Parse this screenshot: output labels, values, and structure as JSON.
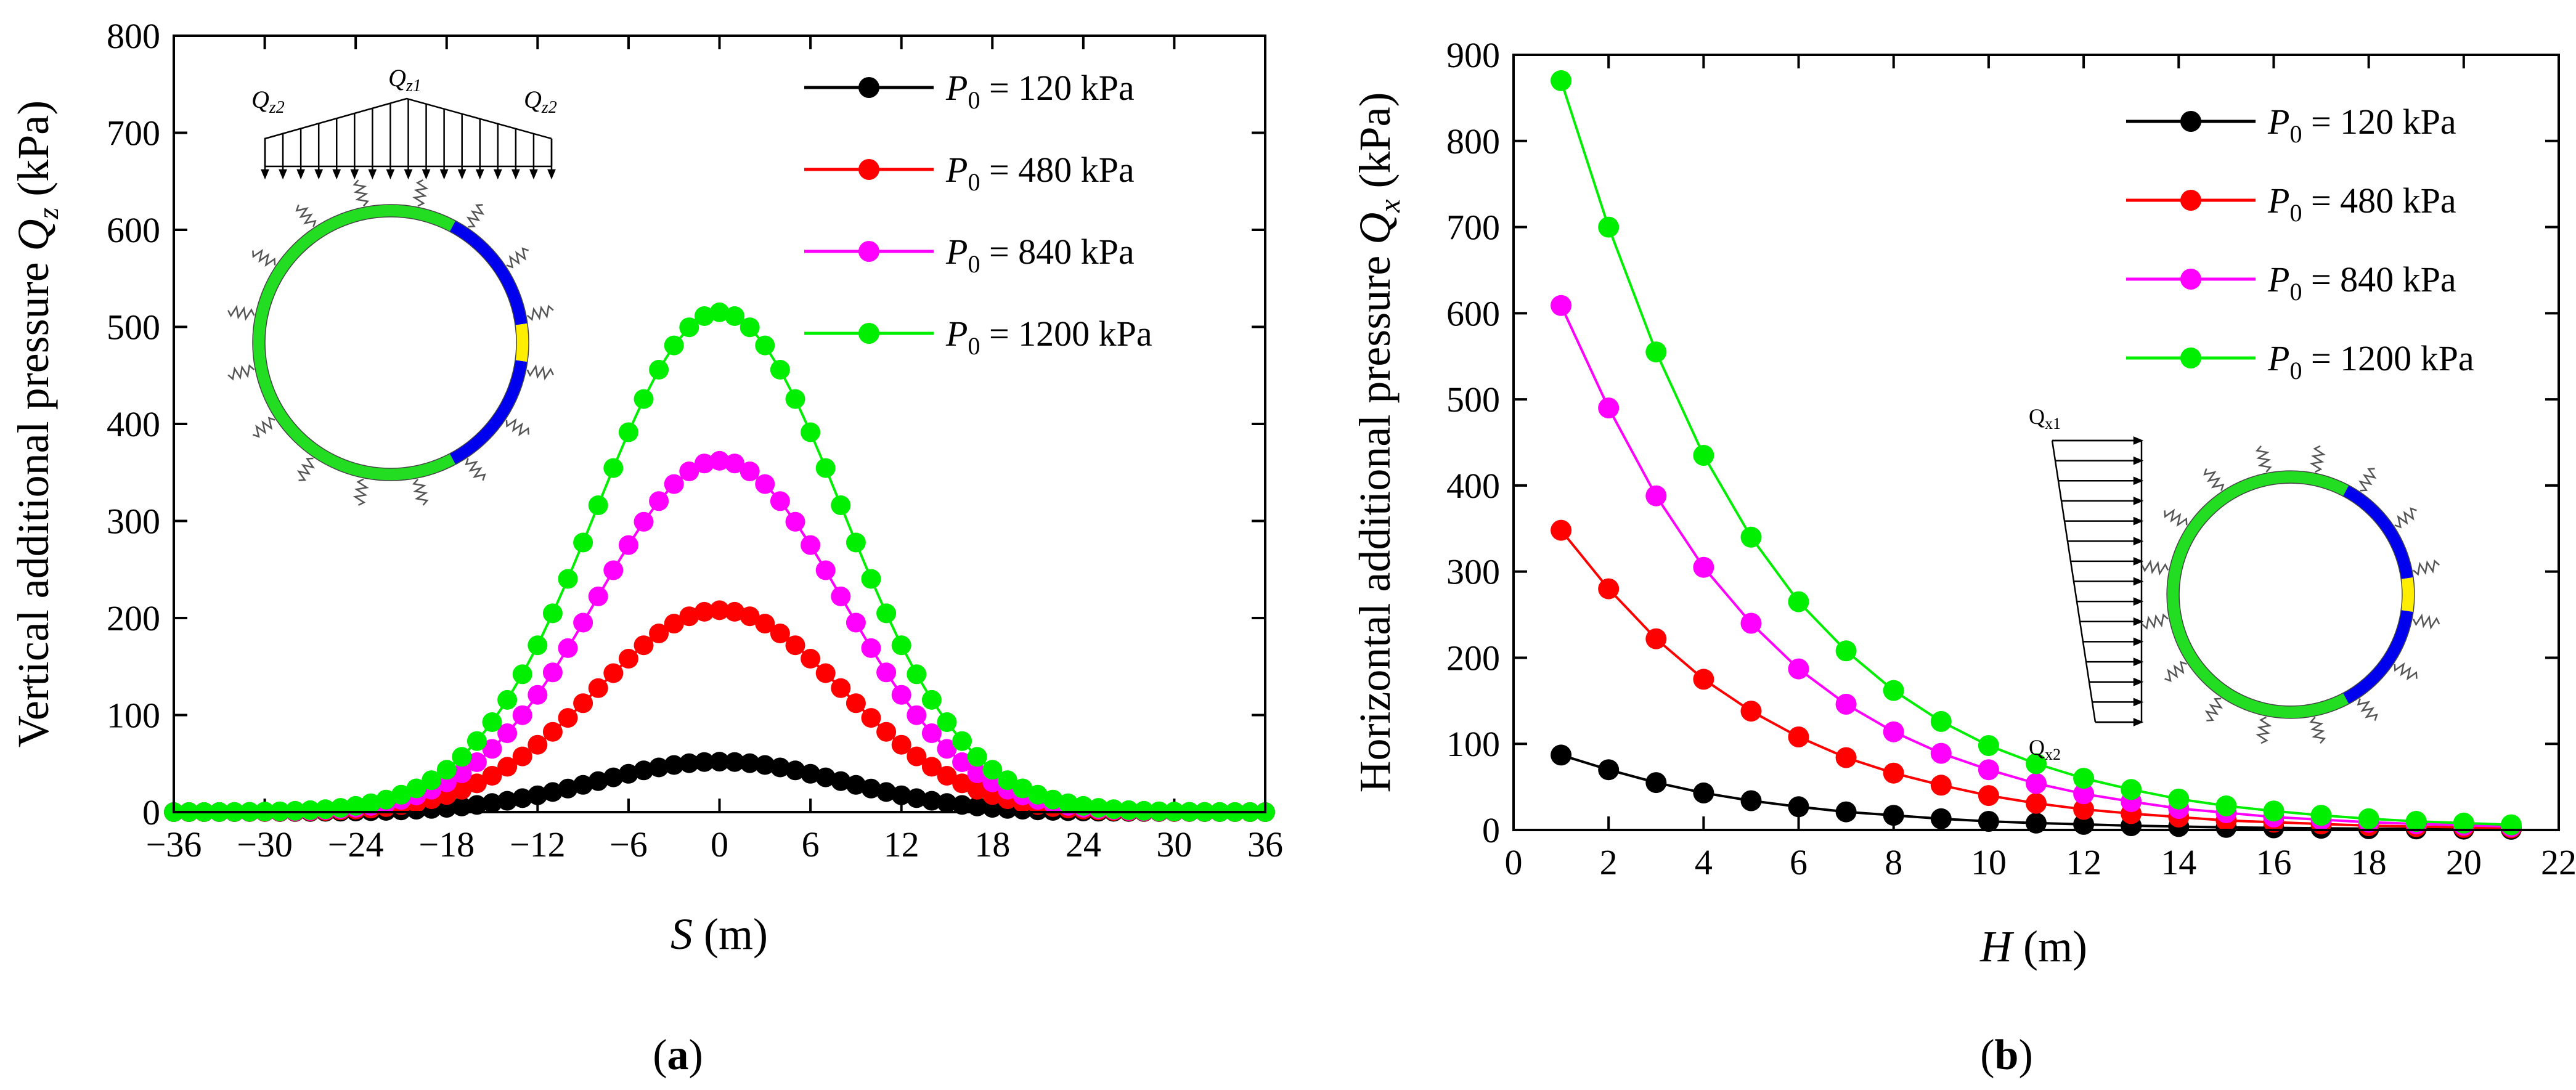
{
  "panels": [
    {
      "id": "a",
      "caption_letter": "a",
      "legend_labels": [
        "= 120 kPa",
        "= 480 kPa",
        "= 840 kPa",
        "= 1200 kPa"
      ],
      "inset_labels": {
        "left": "Q",
        "left_sub": "z2",
        "center": "Q",
        "center_sub": "z1",
        "right": "Q",
        "right_sub": "z2"
      }
    },
    {
      "id": "b",
      "caption_letter": "b",
      "legend_labels": [
        "= 120 kPa",
        "= 480 kPa",
        "= 840 kPa",
        "= 1200 kPa"
      ],
      "inset_labels": {
        "top": "Q",
        "top_sub": "x1",
        "bottom": "Q",
        "bottom_sub": "x2"
      }
    }
  ],
  "chart_data": [
    {
      "type": "scatter",
      "panel": "a",
      "title": "",
      "xlabel": "S",
      "xlabel_unit": " (m)",
      "ylabel": "Vertical additional pressure ",
      "ylabel_var": "Q",
      "ylabel_sub": "z",
      "ylabel_unit": " (kPa)",
      "xlim": [
        -36,
        36
      ],
      "ylim": [
        0,
        800
      ],
      "xticks": [
        -36,
        -30,
        -24,
        -18,
        -12,
        -6,
        0,
        6,
        12,
        18,
        24,
        30,
        36
      ],
      "xtick_labels": [
        "−36",
        "−30",
        "−24",
        "−18",
        "−12",
        "−6",
        "0",
        "6",
        "12",
        "18",
        "24",
        "30",
        "36"
      ],
      "yticks": [
        0,
        100,
        200,
        300,
        400,
        500,
        600,
        700,
        800
      ],
      "x_range": [
        -36,
        36
      ],
      "x_step": 1,
      "curve_model": "gaussian",
      "legend_position": "top-right",
      "series": [
        {
          "name": "P0 = 120 kPa",
          "color": "#000000",
          "peak": 52,
          "sigma": 8.1
        },
        {
          "name": "P0 = 480 kPa",
          "color": "#ff0000",
          "peak": 208,
          "sigma": 8.1
        },
        {
          "name": "P0 = 840 kPa",
          "color": "#ff00ff",
          "peak": 362,
          "sigma": 8.1
        },
        {
          "name": "P0 = 1200 kPa",
          "color": "#00ee00",
          "peak": 515,
          "sigma": 8.1
        }
      ]
    },
    {
      "type": "line",
      "panel": "b",
      "title": "",
      "xlabel": "H",
      "xlabel_unit": " (m)",
      "ylabel": "Horizontal additional pressure ",
      "ylabel_var": "Q",
      "ylabel_sub": "x",
      "ylabel_unit": " (kPa)",
      "xlim": [
        0,
        22
      ],
      "ylim": [
        0,
        900
      ],
      "xticks": [
        0,
        2,
        4,
        6,
        8,
        10,
        12,
        14,
        16,
        18,
        20,
        22
      ],
      "yticks": [
        0,
        100,
        200,
        300,
        400,
        500,
        600,
        700,
        800,
        900
      ],
      "x": [
        1,
        2,
        3,
        4,
        5,
        6,
        7,
        8,
        9,
        10,
        11,
        12,
        13,
        14,
        15,
        16,
        17,
        18,
        19,
        20,
        21
      ],
      "legend_position": "top-right",
      "series": [
        {
          "name": "P0 = 120 kPa",
          "color": "#000000",
          "values": [
            87,
            70,
            55,
            43,
            34,
            27,
            21,
            17,
            13,
            10,
            8,
            6.5,
            5,
            4,
            3,
            2.5,
            2,
            1.5,
            1.2,
            1,
            0.8
          ]
        },
        {
          "name": "P0 = 480 kPa",
          "color": "#ff0000",
          "values": [
            348,
            280,
            222,
            175,
            138,
            108,
            84,
            66,
            52,
            40,
            31,
            24,
            19,
            15,
            11,
            9,
            7,
            5,
            4,
            3,
            2.5
          ]
        },
        {
          "name": "P0 = 840 kPa",
          "color": "#ff00ff",
          "values": [
            609,
            490,
            388,
            305,
            240,
            187,
            146,
            114,
            89,
            70,
            54,
            42,
            33,
            25,
            20,
            15,
            12,
            9,
            7,
            5.5,
            4
          ]
        },
        {
          "name": "P0 = 1200 kPa",
          "color": "#00ee00",
          "values": [
            870,
            700,
            555,
            435,
            340,
            265,
            208,
            162,
            126,
            98,
            77,
            60,
            47,
            36,
            28,
            22,
            17,
            13,
            10,
            8,
            6
          ]
        }
      ]
    }
  ]
}
